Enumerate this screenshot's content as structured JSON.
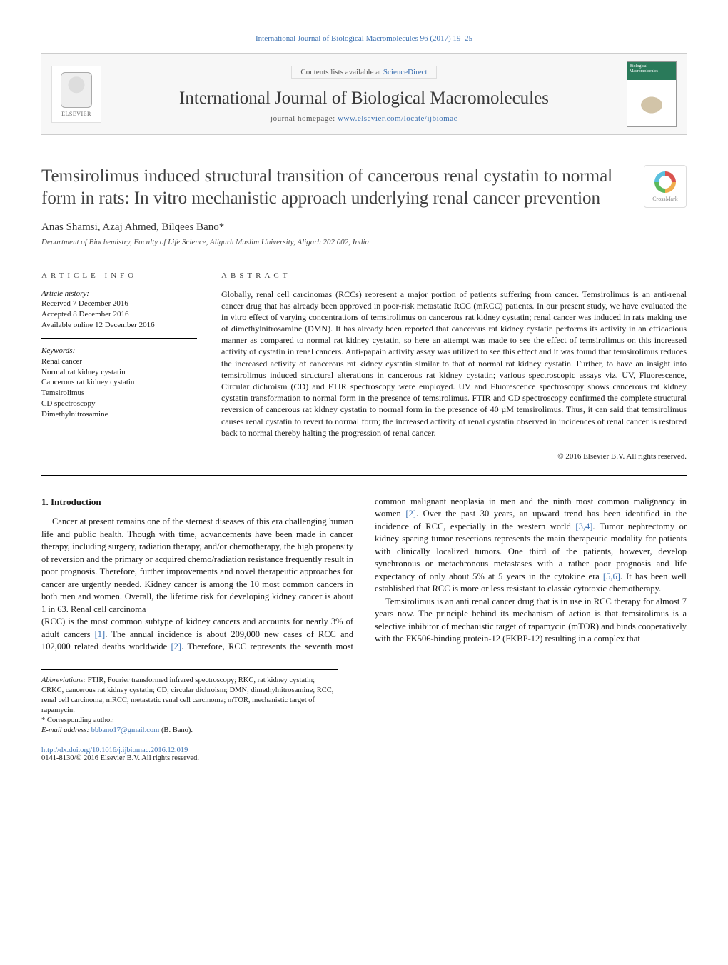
{
  "top_citation": "International Journal of Biological Macromolecules 96 (2017) 19–25",
  "header": {
    "publisher": "ELSEVIER",
    "contents_prefix": "Contents lists available at ",
    "contents_link": "ScienceDirect",
    "journal_name": "International Journal of Biological Macromolecules",
    "homepage_prefix": "journal homepage: ",
    "homepage_url": "www.elsevier.com/locate/ijbiomac",
    "cover_text": "Biological Macromolecules"
  },
  "crossmark_label": "CrossMark",
  "title": "Temsirolimus induced structural transition of cancerous renal cystatin to normal form in rats: In vitro mechanistic approach underlying renal cancer prevention",
  "authors": "Anas Shamsi, Azaj Ahmed, Bilqees Bano*",
  "affiliation": "Department of Biochemistry, Faculty of Life Science, Aligarh Muslim University, Aligarh 202 002, India",
  "article_info": {
    "heading": "ARTICLE INFO",
    "history_label": "Article history:",
    "received": "Received 7 December 2016",
    "accepted": "Accepted 8 December 2016",
    "online": "Available online 12 December 2016",
    "keywords_label": "Keywords:",
    "keywords": [
      "Renal cancer",
      "Normal rat kidney cystatin",
      "Cancerous rat kidney cystatin",
      "Temsirolimus",
      "CD spectroscopy",
      "Dimethylnitrosamine"
    ]
  },
  "abstract": {
    "heading": "ABSTRACT",
    "text": "Globally, renal cell carcinomas (RCCs) represent a major portion of patients suffering from cancer. Temsirolimus is an anti-renal cancer drug that has already been approved in poor-risk metastatic RCC (mRCC) patients. In our present study, we have evaluated the in vitro effect of varying concentrations of temsirolimus on cancerous rat kidney cystatin; renal cancer was induced in rats making use of dimethylnitrosamine (DMN). It has already been reported that cancerous rat kidney cystatin performs its activity in an efficacious manner as compared to normal rat kidney cystatin, so here an attempt was made to see the effect of temsirolimus on this increased activity of cystatin in renal cancers. Anti-papain activity assay was utilized to see this effect and it was found that temsirolimus reduces the increased activity of cancerous rat kidney cystatin similar to that of normal rat kidney cystatin. Further, to have an insight into temsirolimus induced structural alterations in cancerous rat kidney cystatin; various spectroscopic assays viz. UV, Fluorescence, Circular dichroism (CD) and FTIR spectroscopy were employed. UV and Fluorescence spectroscopy shows cancerous rat kidney cystatin transformation to normal form in the presence of temsirolimus. FTIR and CD spectroscopy confirmed the complete structural reversion of cancerous rat kidney cystatin to normal form in the presence of 40 µM temsirolimus. Thus, it can said that temsirolimus causes renal cystatin to revert to normal form; the increased activity of renal cystatin observed in incidences of renal cancer is restored back to normal thereby halting the progression of renal cancer.",
    "copyright": "© 2016 Elsevier B.V. All rights reserved."
  },
  "intro": {
    "heading": "1. Introduction",
    "p1": "Cancer at present remains one of the sternest diseases of this era challenging human life and public health. Though with time, advancements have been made in cancer therapy, including surgery, radiation therapy, and/or chemotherapy, the high propensity of reversion and the primary or acquired chemo/radiation resistance frequently result in poor prognosis. Therefore, further improvements and novel therapeutic approaches for cancer are urgently needed. Kidney cancer is among the 10 most common cancers in both men and women. Overall, the lifetime risk for developing kidney cancer is about 1 in 63. Renal cell carcinoma",
    "p2a": "(RCC) is the most common subtype of kidney cancers and accounts for nearly 3% of adult cancers ",
    "p2b": ". The annual incidence is about 209,000 new cases of RCC and 102,000 related deaths worldwide ",
    "p2c": ". Therefore, RCC represents the seventh most common malignant neoplasia in men and the ninth most common malignancy in women ",
    "p2d": ". Over the past 30 years, an upward trend has been identified in the incidence of RCC, especially in the western world ",
    "p2e": ". Tumor nephrectomy or kidney sparing tumor resections represents the main therapeutic modality for patients with clinically localized tumors. One third of the patients, however, develop synchronous or metachronous metastases with a rather poor prognosis and life expectancy of only about 5% at 5 years in the cytokine era ",
    "p2f": ". It has been well established that RCC is more or less resistant to classic cytotoxic chemotherapy.",
    "p3": "Temsirolimus is an anti renal cancer drug that is in use in RCC therapy for almost 7 years now. The principle behind its mechanism of action is that temsirolimus is a selective inhibitor of mechanistic target of rapamycin (mTOR) and binds cooperatively with the FK506-binding protein-12 (FKBP-12) resulting in a complex that",
    "refs": {
      "r1": "[1]",
      "r2": "[2]",
      "r2b": "[2]",
      "r34": "[3,4]",
      "r56": "[5,6]"
    }
  },
  "footnotes": {
    "abbr_label": "Abbreviations:",
    "abbr_text": " FTIR, Fourier transformed infrared spectroscopy; RKC, rat kidney cystatin; CRKC, cancerous rat kidney cystatin; CD, circular dichroism; DMN, dimethylnitrosamine; RCC, renal cell carcinoma; mRCC, metastatic renal cell carcinoma; mTOR, mechanistic target of rapamycin.",
    "corr_label": "* Corresponding author.",
    "email_label": "E-mail address: ",
    "email": "bbbano17@gmail.com",
    "email_name": " (B. Bano)."
  },
  "doi": {
    "url": "http://dx.doi.org/10.1016/j.ijbiomac.2016.12.019",
    "issn_line": "0141-8130/© 2016 Elsevier B.V. All rights reserved."
  },
  "colors": {
    "link": "#3a6fb0",
    "text": "#1a1a1a",
    "heading": "#424242",
    "rule": "#000000",
    "bg": "#ffffff"
  }
}
